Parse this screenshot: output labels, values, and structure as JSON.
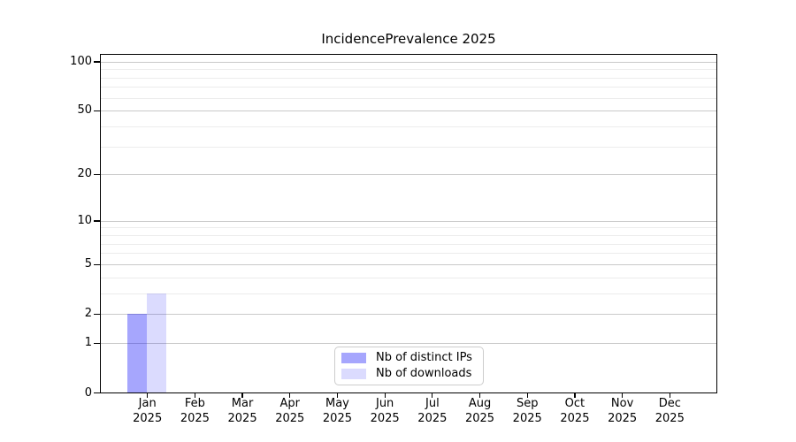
{
  "title": "IncidencePrevalence 2025",
  "chart_data": {
    "type": "bar",
    "title": "IncidencePrevalence 2025",
    "x_categories": [
      "Jan 2025",
      "Feb 2025",
      "Mar 2025",
      "Apr 2025",
      "May 2025",
      "Jun 2025",
      "Jul 2025",
      "Aug 2025",
      "Sep 2025",
      "Oct 2025",
      "Nov 2025",
      "Dec 2025"
    ],
    "series": [
      {
        "name": "Nb of distinct IPs",
        "color": "rgba(0, 0, 250, 0.35)",
        "values": [
          2,
          0,
          0,
          0,
          0,
          0,
          0,
          0,
          0,
          0,
          0,
          0
        ]
      },
      {
        "name": "Nb of downloads",
        "color": "rgba(0, 0, 250, 0.14)",
        "values": [
          3,
          0,
          0,
          0,
          0,
          0,
          0,
          0,
          0,
          0,
          0,
          0
        ]
      }
    ],
    "y_axis": {
      "scale": "log1p",
      "range": [
        0,
        100
      ],
      "major_ticks": [
        0,
        1,
        2,
        5,
        10,
        20,
        50,
        100
      ],
      "minor_ticks": [
        3,
        4,
        6,
        7,
        8,
        9,
        30,
        40,
        60,
        70,
        80,
        90
      ]
    },
    "legend": {
      "position": "bottom-center",
      "entries": [
        "Nb of distinct IPs",
        "Nb of downloads"
      ]
    },
    "grid": "horizontal"
  },
  "colors": {
    "bar_distinct_ips_rendered": "#aaaafb",
    "bar_downloads_rendered": "#dbdbfd",
    "grid_major": "#c9c9c9",
    "grid_minor": "#ececec",
    "axis": "#000000",
    "legend_border": "#cccccc",
    "background": "#ffffff"
  }
}
